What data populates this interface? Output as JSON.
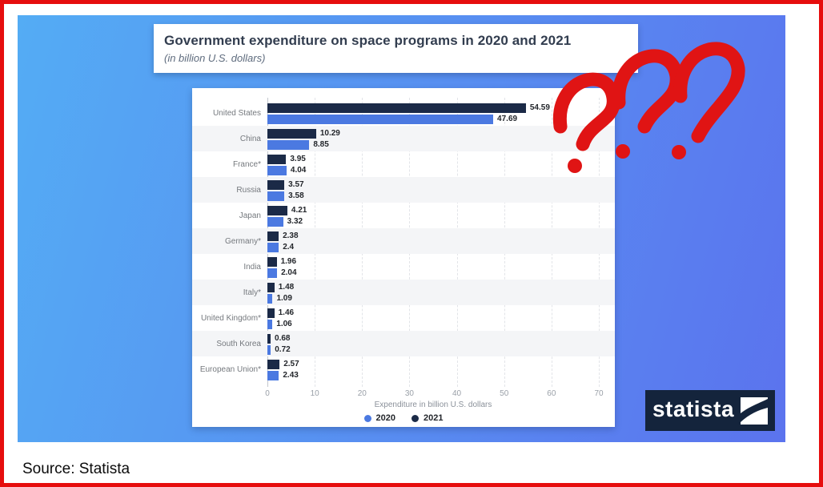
{
  "frame": {
    "border_color": "#e60d0d",
    "background": "#ffffff"
  },
  "canvas": {
    "gradient_start": "#54acf4",
    "gradient_end": "#5b73ee"
  },
  "title_block": {
    "title": "Government expenditure on space programs in 2020 and 2021",
    "subtitle": "(in billion U.S. dollars)"
  },
  "chart_data": {
    "type": "bar",
    "orientation": "horizontal",
    "title": "Government expenditure on space programs in 2020 and 2021",
    "subtitle": "(in billion U.S. dollars)",
    "categories": [
      "United States",
      "China",
      "France*",
      "Russia",
      "Japan",
      "Germany*",
      "India",
      "Italy*",
      "United Kingdom*",
      "South Korea",
      "European Union*"
    ],
    "series": [
      {
        "name": "2020",
        "color": "#4b79e1",
        "values": [
          47.69,
          8.85,
          4.04,
          3.58,
          3.32,
          2.4,
          2.04,
          1.09,
          1.06,
          0.72,
          2.43
        ]
      },
      {
        "name": "2021",
        "color": "#1b2a47",
        "values": [
          54.59,
          10.29,
          3.95,
          3.57,
          4.21,
          2.38,
          1.96,
          1.48,
          1.46,
          0.68,
          2.57
        ]
      }
    ],
    "bar_order_top_to_bottom": [
      "2021",
      "2020"
    ],
    "xlabel": "Expenditure in billion U.S. dollars",
    "xlim": [
      0,
      70
    ],
    "xticks": [
      0,
      10,
      20,
      30,
      40,
      50,
      60,
      70
    ],
    "grid": "vertical-dashed",
    "legend_position": "bottom-center",
    "value_labels": true
  },
  "annotation": {
    "text": "???",
    "color": "#e01414"
  },
  "logo": {
    "text": "statista",
    "background": "#14243c"
  },
  "source_line": {
    "text": "Source: Statista"
  }
}
